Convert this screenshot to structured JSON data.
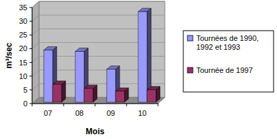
{
  "chart_data": {
    "type": "bar",
    "categories": [
      "07",
      "08",
      "09",
      "10"
    ],
    "series": [
      {
        "name": "Tournées de 1990, 1992 et 1993",
        "color": "#9999ff",
        "values": [
          19,
          18.5,
          12,
          33
        ]
      },
      {
        "name": "Tournée de 1997",
        "color": "#993366",
        "values": [
          6.5,
          5,
          4,
          4.5
        ]
      }
    ],
    "x_label": "Mois",
    "y_label": "m³/sec",
    "ylim": [
      0,
      35
    ],
    "yticks": [
      0,
      5,
      10,
      15,
      20,
      25,
      30,
      35
    ],
    "grid": true,
    "legend": "right"
  }
}
